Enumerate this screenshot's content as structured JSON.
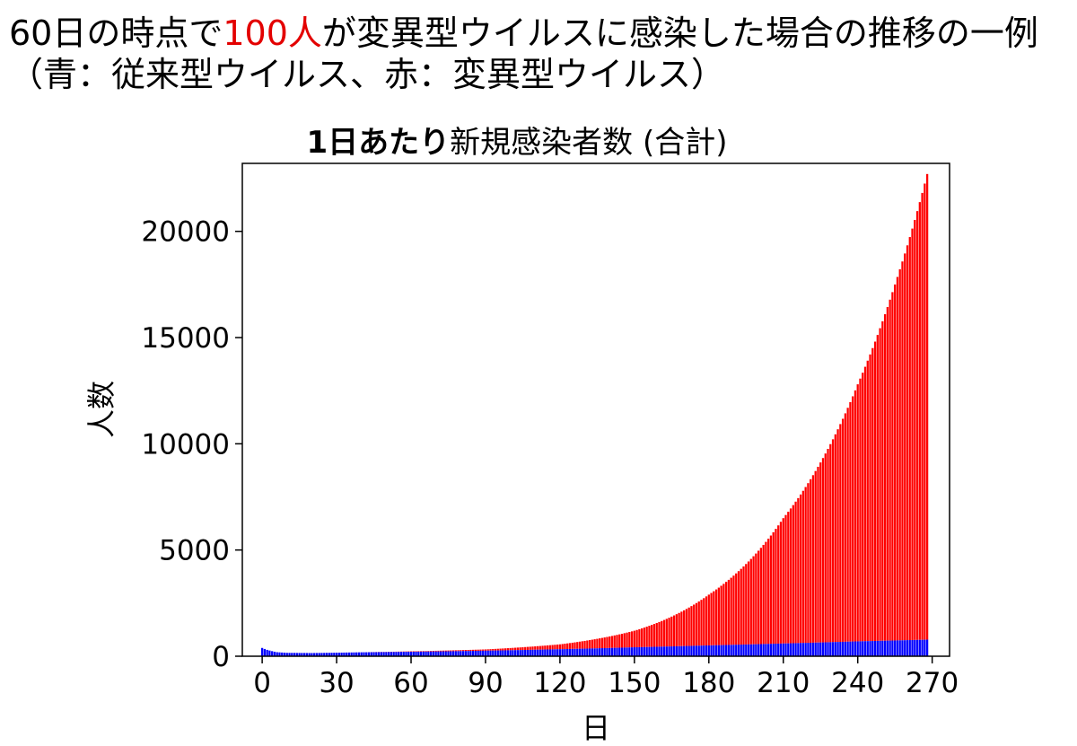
{
  "headline": {
    "part1": "60日の時点で",
    "highlight": "100人",
    "part2": "が変異型ウイルスに感染した場合の推移の一例（青：従来型ウイルス、赤：変異型ウイルス）",
    "highlight_color": "#e30000"
  },
  "chart_data": {
    "type": "bar",
    "stacked": true,
    "title_bold": "1日あたり",
    "title_rest": "新規感染者数 (合計)",
    "xlabel": "日",
    "ylabel": "人数",
    "xlim": [
      -8,
      277
    ],
    "ylim": [
      0,
      23200
    ],
    "xticks": [
      0,
      30,
      60,
      90,
      120,
      150,
      180,
      210,
      240,
      270
    ],
    "yticks": [
      0,
      5000,
      10000,
      15000,
      20000
    ],
    "x": {
      "start": 0,
      "end": 268,
      "step": 1
    },
    "series": [
      {
        "name": "従来型ウイルス",
        "color": "#0000ff",
        "description": "roughly piecewise: ~390 on day 0, ~150 by day 20, rising slowly to ~780 by day 268",
        "knots": [
          [
            0,
            390
          ],
          [
            2,
            300
          ],
          [
            6,
            190
          ],
          [
            10,
            160
          ],
          [
            20,
            150
          ],
          [
            40,
            185
          ],
          [
            60,
            210
          ],
          [
            90,
            260
          ],
          [
            120,
            330
          ],
          [
            150,
            420
          ],
          [
            180,
            510
          ],
          [
            210,
            600
          ],
          [
            240,
            700
          ],
          [
            268,
            780
          ]
        ]
      },
      {
        "name": "変異型ウイルス",
        "color": "#ff0000",
        "description": "total daily new cases (stacked top); zero before day 60, then grows roughly exponentially",
        "total_knots": [
          [
            0,
            390
          ],
          [
            2,
            300
          ],
          [
            6,
            190
          ],
          [
            10,
            160
          ],
          [
            20,
            150
          ],
          [
            40,
            185
          ],
          [
            60,
            230
          ],
          [
            90,
            320
          ],
          [
            120,
            560
          ],
          [
            150,
            1200
          ],
          [
            180,
            2900
          ],
          [
            210,
            6500
          ],
          [
            240,
            12800
          ],
          [
            255,
            17500
          ],
          [
            268,
            22700
          ]
        ]
      }
    ]
  }
}
